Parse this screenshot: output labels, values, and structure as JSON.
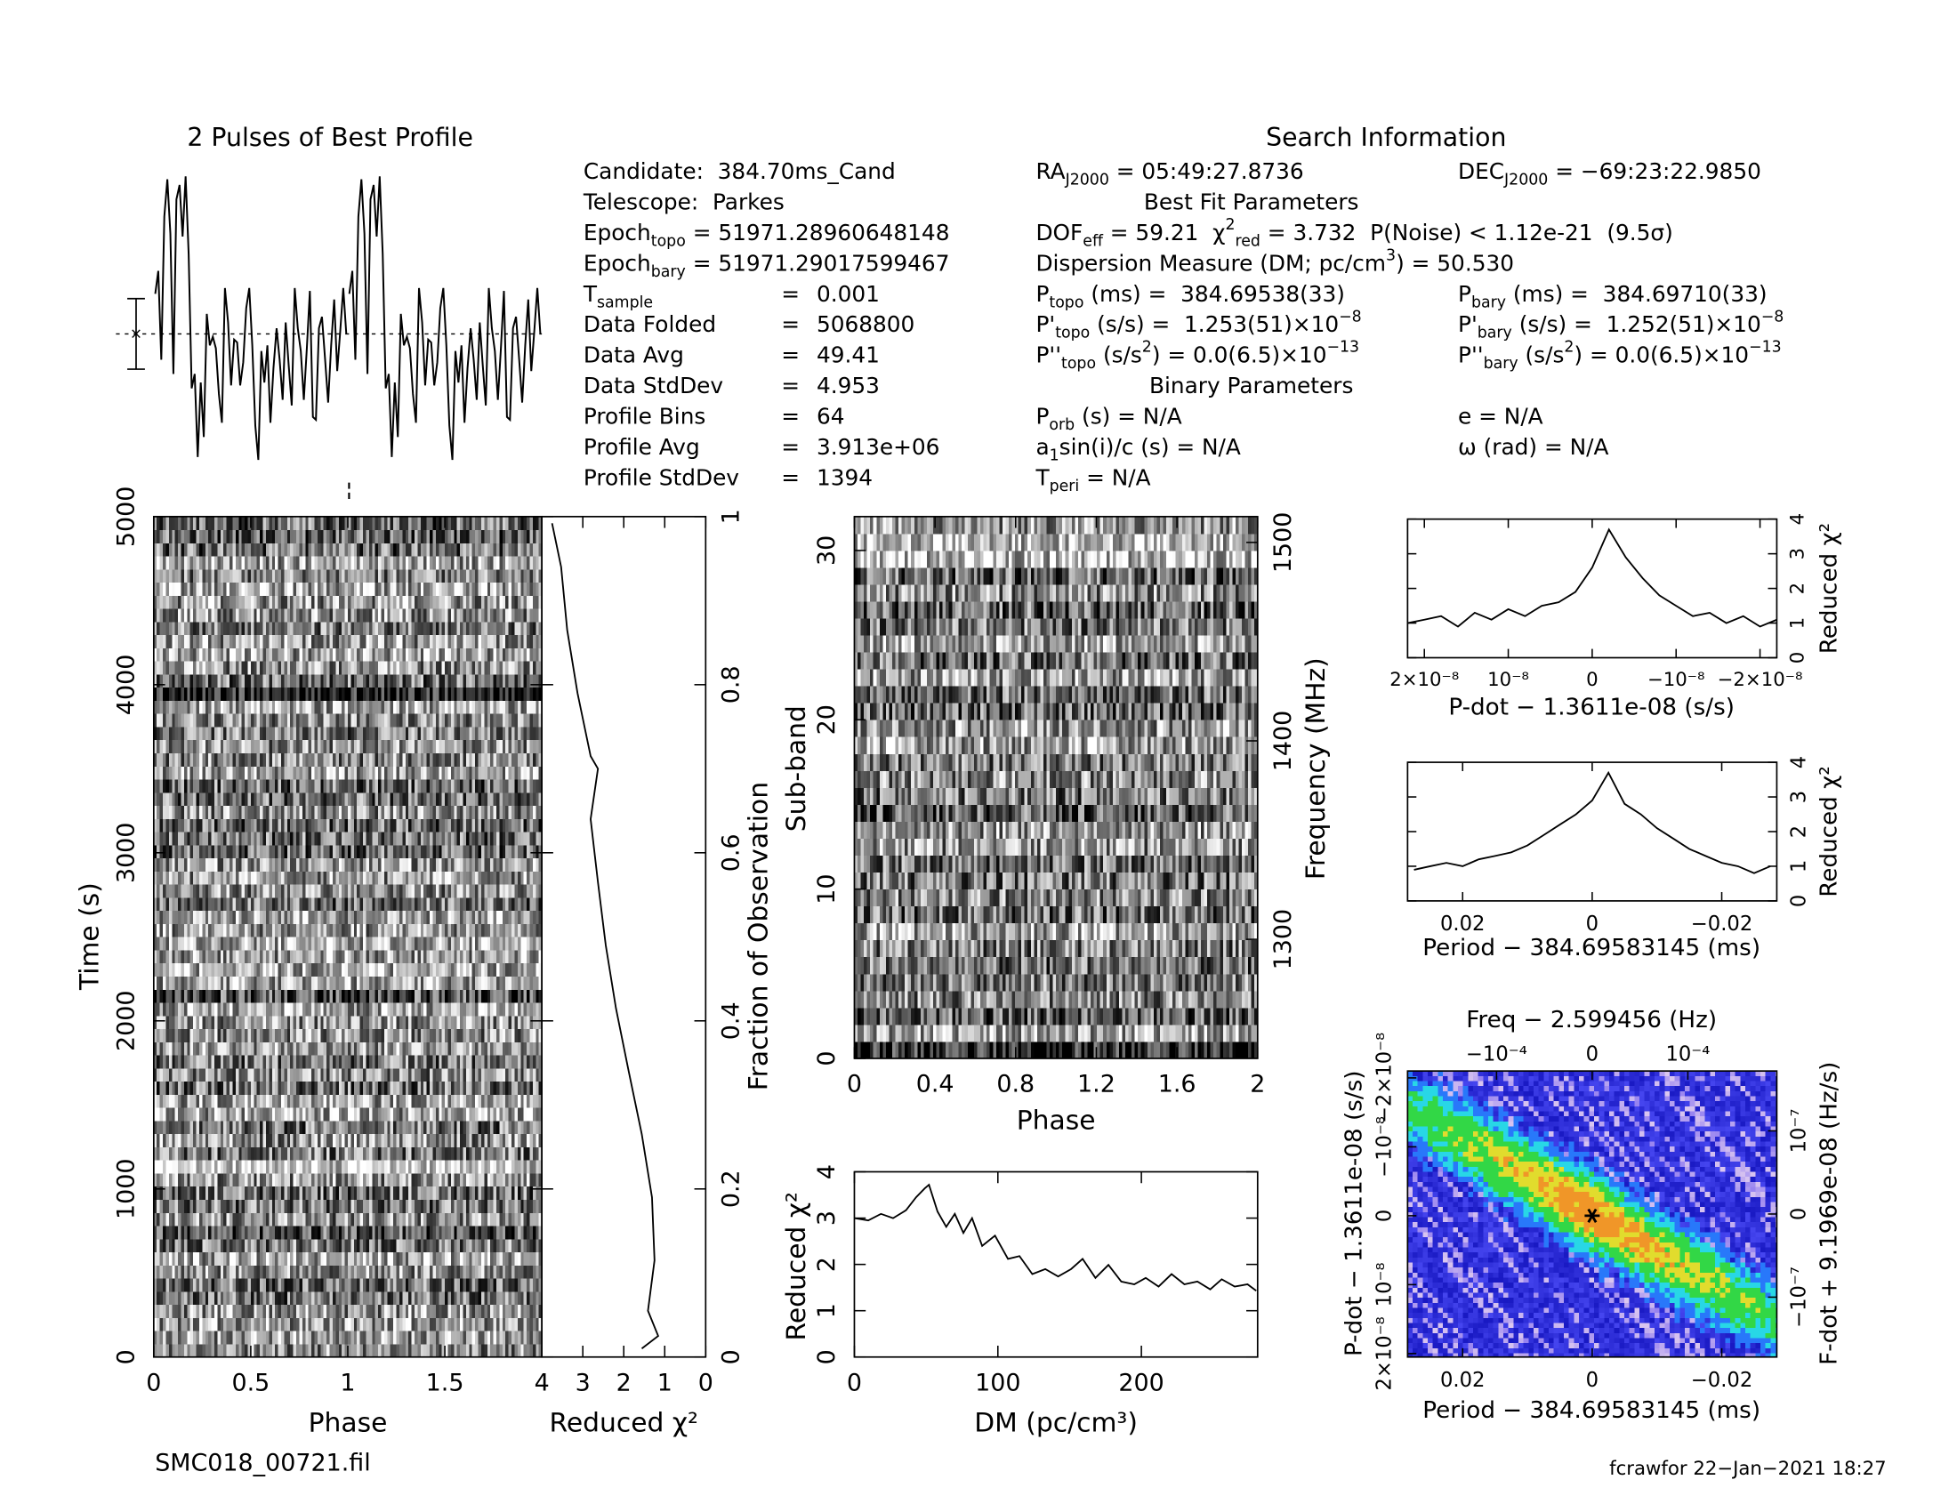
{
  "chart_data": [
    {
      "type": "line",
      "title": "2 Pulses of Best Profile",
      "values": [
        5.8,
        6.6,
        3.5,
        8.5,
        9.8,
        7.9,
        3.0,
        9.1,
        9.6,
        7.8,
        9.9,
        7.2,
        2.5,
        3.0,
        0.1,
        2.7,
        0.8,
        5.1,
        4.0,
        4.3,
        3.9,
        2.3,
        1.3,
        6.0,
        4.8,
        2.6,
        4.2,
        4.1,
        2.6,
        3.4,
        5.3,
        6.0,
        4.0,
        1.2,
        0.0,
        3.8,
        2.7,
        4.0,
        1.3,
        3.2,
        4.6,
        3.5,
        2.1,
        4.8,
        3.3,
        1.9,
        6.0,
        4.6,
        3.8,
        2.1,
        3.9,
        5.9,
        1.5,
        1.4,
        4.6,
        5.0,
        3.5,
        2.0,
        4.0,
        5.6,
        3.1,
        4.5,
        6.0,
        4.4
      ]
    },
    {
      "type": "heatmap",
      "colormap": "gray",
      "xlabel": "Phase",
      "ylabel": "Time (s)",
      "xlim": [
        0,
        2
      ],
      "xticks": [
        0,
        0.5,
        1,
        1.5
      ],
      "ylim": [
        0,
        5000
      ],
      "yticks": [
        0,
        1000,
        2000,
        3000,
        4000,
        5000
      ]
    },
    {
      "type": "line",
      "xlabel": "Reduced χ²",
      "ylabel": "Fraction of Observation",
      "x": [
        1.56,
        1.16,
        1.41,
        1.25,
        1.31,
        1.56,
        1.88,
        2.19,
        2.44,
        2.63,
        2.81,
        2.63,
        2.81,
        3.13,
        3.38,
        3.53,
        3.75
      ],
      "values": [
        0.01,
        0.025,
        0.055,
        0.115,
        0.19,
        0.265,
        0.34,
        0.415,
        0.49,
        0.565,
        0.64,
        0.7,
        0.715,
        0.79,
        0.865,
        0.94,
        0.992
      ],
      "xlim": [
        4,
        0
      ],
      "xticks": [
        4,
        3,
        2,
        1,
        0
      ],
      "ylim": [
        0,
        1
      ],
      "yticks": [
        0,
        0.2,
        0.4,
        0.6,
        0.8,
        1
      ]
    },
    {
      "type": "heatmap",
      "colormap": "gray",
      "xlabel": "Phase",
      "ylabel": "Sub-band",
      "y2label": "Frequency (MHz)",
      "xlim": [
        0,
        2
      ],
      "xticks": [
        0,
        0.4,
        0.8,
        1.2,
        1.6,
        2
      ],
      "ylim": [
        0,
        32
      ],
      "yticks": [
        0,
        10,
        20,
        30
      ],
      "y2lim": [
        1240,
        1513
      ],
      "y2ticks": [
        1300,
        1400,
        1500
      ]
    },
    {
      "type": "line",
      "xlabel": "DM (pc/cm³)",
      "ylabel": "Reduced χ²",
      "x": [
        0,
        9.7,
        18.5,
        27,
        36,
        43,
        49,
        52,
        58,
        64,
        70,
        76,
        82,
        89,
        98,
        107,
        115,
        124,
        133,
        142,
        151,
        159,
        168,
        177,
        186,
        195,
        203,
        212,
        221,
        230,
        239,
        248,
        256,
        265,
        274,
        280
      ],
      "values": [
        3.0,
        2.95,
        3.09,
        3.0,
        3.17,
        3.45,
        3.64,
        3.72,
        3.14,
        2.81,
        3.09,
        2.68,
        3.0,
        2.4,
        2.62,
        2.12,
        2.18,
        1.79,
        1.9,
        1.74,
        1.9,
        2.12,
        1.71,
        1.99,
        1.63,
        1.57,
        1.71,
        1.52,
        1.79,
        1.57,
        1.63,
        1.46,
        1.68,
        1.52,
        1.57,
        1.43
      ],
      "xlim": [
        0,
        281
      ],
      "xticks": [
        0,
        100,
        200
      ],
      "ylim": [
        0,
        4
      ],
      "yticks": [
        0,
        1,
        2,
        3,
        4
      ]
    },
    {
      "type": "line",
      "xlabel": "P-dot − 1.3611e-08 (s/s)",
      "ylabel": "Reduced χ²",
      "x": [
        2.2e-08,
        2e-08,
        1.8e-08,
        1.6e-08,
        1.4e-08,
        1.2e-08,
        1e-08,
        8e-09,
        6e-09,
        4e-09,
        2e-09,
        0,
        -2e-09,
        -4e-09,
        -6e-09,
        -8e-09,
        -1e-08,
        -1.2e-08,
        -1.4e-08,
        -1.6e-08,
        -1.8e-08,
        -2e-08,
        -2.2e-08
      ],
      "values": [
        1.0,
        1.1,
        1.2,
        0.9,
        1.3,
        1.1,
        1.4,
        1.2,
        1.5,
        1.6,
        1.9,
        2.6,
        3.7,
        2.9,
        2.3,
        1.8,
        1.5,
        1.2,
        1.3,
        1.0,
        1.2,
        0.9,
        1.1
      ],
      "xlim": [
        2.2e-08,
        -2.2e-08
      ],
      "xticks": [
        {
          "value": 2e-08,
          "label": "2×10⁻⁸"
        },
        {
          "value": 1e-08,
          "label": "10⁻⁸"
        },
        0,
        {
          "value": -1e-08,
          "label": "−10⁻⁸"
        },
        {
          "value": -2e-08,
          "label": "−2×10⁻⁸"
        }
      ],
      "ylim": [
        0,
        4
      ],
      "yticks": [
        0,
        1,
        2,
        3,
        4
      ]
    },
    {
      "type": "line",
      "xlabel": "Period − 384.69583145 (ms)",
      "ylabel": "Reduced χ²",
      "x": [
        0.0275,
        0.025,
        0.0225,
        0.02,
        0.0175,
        0.015,
        0.0125,
        0.01,
        0.0075,
        0.005,
        0.0025,
        0,
        -0.0025,
        -0.005,
        -0.0075,
        -0.01,
        -0.0125,
        -0.015,
        -0.0175,
        -0.02,
        -0.0225,
        -0.025,
        -0.0275
      ],
      "values": [
        0.9,
        1.0,
        1.1,
        1.0,
        1.2,
        1.3,
        1.4,
        1.6,
        1.9,
        2.2,
        2.5,
        2.9,
        3.7,
        2.8,
        2.5,
        2.1,
        1.8,
        1.5,
        1.3,
        1.1,
        1.0,
        0.8,
        1.0
      ],
      "xlim": [
        0.0285,
        -0.0285
      ],
      "xticks": [
        0.02,
        0,
        {
          "value": -0.02,
          "label": "−0.02"
        }
      ],
      "ylim": [
        0,
        4
      ],
      "yticks": [
        0,
        1,
        2,
        3,
        4
      ]
    },
    {
      "type": "heatmap",
      "colormap": "rainbow",
      "xlabel": "Period − 384.69583145 (ms)",
      "x2label": "Freq − 2.599456 (Hz)",
      "ylabel": "P-dot − 1.3611e-08 (s/s)",
      "y2label": "F-dot + 9.1969e-08 (Hz/s)",
      "xlim": [
        0.0285,
        -0.0285
      ],
      "xticks": [
        0.02,
        0,
        {
          "value": -0.02,
          "label": "−0.02"
        }
      ],
      "x2lim": [
        -0.000193,
        0.000193
      ],
      "x2ticks": [
        {
          "value": -0.0001,
          "label": "−10⁻⁴"
        },
        0,
        {
          "value": 0.0001,
          "label": "10⁻⁴"
        }
      ],
      "ylim": [
        2.05e-08,
        -2.1e-08
      ],
      "yticks": [
        {
          "value": 2e-08,
          "label": "2×10⁻⁸"
        },
        {
          "value": 1e-08,
          "label": "10⁻⁸"
        },
        0,
        {
          "value": -1e-08,
          "label": "−10⁻⁸"
        },
        {
          "value": -2e-08,
          "label": "−2×10⁻⁸"
        }
      ],
      "y2lim": [
        -1.72e-07,
        1.72e-07
      ],
      "y2ticks": [
        {
          "value": -1e-07,
          "label": "−10⁻⁷"
        },
        0,
        {
          "value": 1e-07,
          "label": "10⁻⁷"
        }
      ],
      "marker": {
        "x": 0,
        "y": 0
      }
    }
  ],
  "info": {
    "rows": [
      {
        "label": [
          {
            "t": "Candidate:  384.70ms_Cand"
          }
        ]
      },
      {
        "label": [
          {
            "t": "Telescope:  Parkes"
          }
        ]
      },
      {
        "label": [
          {
            "t": "Epoch"
          },
          {
            "sub": "topo"
          },
          {
            "t": " = 51971.28960648148"
          }
        ]
      },
      {
        "label": [
          {
            "t": "Epoch"
          },
          {
            "sub": "bary"
          },
          {
            "t": " = 51971.29017599467"
          }
        ]
      },
      {
        "label": [
          {
            "t": "T"
          },
          {
            "sub": "sample"
          }
        ],
        "eq": "=",
        "value": "0.001"
      },
      {
        "label": [
          {
            "t": "Data Folded"
          }
        ],
        "eq": "=",
        "value": "5068800"
      },
      {
        "label": [
          {
            "t": "Data Avg"
          }
        ],
        "eq": "=",
        "value": "49.41"
      },
      {
        "label": [
          {
            "t": "Data StdDev"
          }
        ],
        "eq": "=",
        "value": "4.953"
      },
      {
        "label": [
          {
            "t": "Profile Bins"
          }
        ],
        "eq": "=",
        "value": "64"
      },
      {
        "label": [
          {
            "t": "Profile Avg"
          }
        ],
        "eq": "=",
        "value": "3.913e+06"
      },
      {
        "label": [
          {
            "t": "Profile StdDev"
          }
        ],
        "eq": "=",
        "value": "1394"
      }
    ],
    "title": "Search Information",
    "params": [
      {
        "left": [
          {
            "t": "RA"
          },
          {
            "sub": "J2000"
          },
          {
            "t": " = 05:49:27.8736"
          }
        ],
        "right": [
          {
            "t": "DEC"
          },
          {
            "sub": "J2000"
          },
          {
            "t": " = −69:23:22.9850"
          }
        ]
      },
      {
        "heading": "Best Fit Parameters"
      },
      {
        "left": [
          {
            "t": "DOF"
          },
          {
            "sub": "eff"
          },
          {
            "t": " = 59.21  χ"
          },
          {
            "sup": "2"
          },
          {
            "sub": "red"
          },
          {
            "t": " = 3.732  P(Noise) < 1.12e-21  (9.5σ)"
          }
        ]
      },
      {
        "left": [
          {
            "t": "Dispersion Measure (DM; pc/cm"
          },
          {
            "sup": "3"
          },
          {
            "t": ") = 50.530"
          }
        ]
      },
      {
        "left": [
          {
            "t": "P"
          },
          {
            "sub": "topo"
          },
          {
            "t": " (ms) =  384.69538(33)"
          }
        ],
        "right": [
          {
            "t": "P"
          },
          {
            "sub": "bary"
          },
          {
            "t": " (ms) =  384.69710(33)"
          }
        ]
      },
      {
        "left": [
          {
            "t": "P'"
          },
          {
            "sub": "topo"
          },
          {
            "t": " (s/s) =  1.253(51)×10"
          },
          {
            "sup": "−8"
          }
        ],
        "right": [
          {
            "t": "P'"
          },
          {
            "sub": "bary"
          },
          {
            "t": " (s/s) =  1.252(51)×10"
          },
          {
            "sup": "−8"
          }
        ]
      },
      {
        "left": [
          {
            "t": "P''"
          },
          {
            "sub": "topo"
          },
          {
            "t": " (s/s"
          },
          {
            "sup": "2"
          },
          {
            "t": ") = 0.0(6.5)×10"
          },
          {
            "sup": "−13"
          }
        ],
        "right": [
          {
            "t": "P''"
          },
          {
            "sub": "bary"
          },
          {
            "t": " (s/s"
          },
          {
            "sup": "2"
          },
          {
            "t": ") = 0.0(6.5)×10"
          },
          {
            "sup": "−13"
          }
        ]
      },
      {
        "heading": "Binary Parameters"
      },
      {
        "left": [
          {
            "t": "P"
          },
          {
            "sub": "orb"
          },
          {
            "t": " (s) = N/A"
          }
        ],
        "right": [
          {
            "t": "e = N/A"
          }
        ]
      },
      {
        "left": [
          {
            "t": "a"
          },
          {
            "sub": "1"
          },
          {
            "t": "sin(i)/c (s) = N/A"
          }
        ],
        "right": [
          {
            "t": "ω (rad) = N/A"
          }
        ]
      },
      {
        "left": [
          {
            "t": "T"
          },
          {
            "sub": "peri"
          },
          {
            "t": " = N/A"
          }
        ]
      }
    ]
  },
  "footer": {
    "file": "SMC018_00721.fil",
    "stamp": "fcrawfor 22−Jan−2021 18:27"
  }
}
